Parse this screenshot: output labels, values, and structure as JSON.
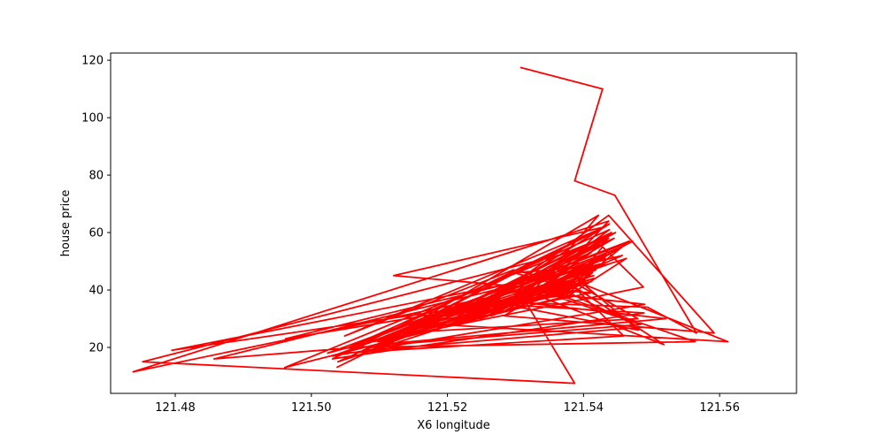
{
  "chart_data": {
    "type": "line",
    "title": "",
    "xlabel": "X6 longitude",
    "ylabel": "house price",
    "xlim": [
      121.4705,
      121.5713
    ],
    "ylim": [
      4.0,
      122.5
    ],
    "xticks": [
      121.48,
      121.5,
      121.52,
      121.54,
      121.56
    ],
    "xtick_labels": [
      "121.48",
      "121.50",
      "121.52",
      "121.54",
      "121.56"
    ],
    "yticks": [
      20,
      40,
      60,
      80,
      100,
      120
    ],
    "ytick_labels": [
      "20",
      "40",
      "60",
      "80",
      "100",
      "120"
    ],
    "grid": false,
    "series": [
      {
        "name": "house price",
        "color": "#ff0000",
        "x": [
          121.5307,
          121.5428,
          121.5387,
          121.5446,
          121.5566,
          121.5494,
          121.5254,
          121.5381,
          121.5091,
          121.5488,
          121.5428,
          121.5382,
          121.5297,
          121.5049,
          121.5432,
          121.5121,
          121.5411,
          121.5286,
          121.5472,
          121.5024,
          121.54,
          121.5612,
          121.5187,
          121.5437,
          121.4795,
          121.5316,
          121.5422,
          121.5098,
          121.5521,
          121.5298,
          121.5378,
          121.5457,
          121.4962,
          121.5394,
          121.5145,
          121.5423,
          121.5031,
          121.5489,
          121.5276,
          121.5342,
          121.5564,
          121.5065,
          121.5435,
          121.5381,
          121.5198,
          121.5463,
          121.5378,
          121.4961,
          121.5447,
          121.5212,
          121.538,
          121.5297,
          121.5413,
          121.5086,
          121.5483,
          121.5379,
          121.5265,
          121.5445,
          121.5039,
          121.5415,
          121.5312,
          121.5387,
          121.4752,
          121.5427,
          121.5228,
          121.5438,
          121.5134,
          121.5402,
          121.5299,
          121.5411,
          121.5047,
          121.5459,
          121.5382,
          121.5176,
          121.5435,
          121.5273,
          121.5415,
          121.4738,
          121.5437,
          121.5333,
          121.5518,
          121.5387,
          121.5098,
          121.5456,
          121.5283,
          121.5592,
          121.5437,
          121.5214,
          121.5432,
          121.5031,
          121.549,
          121.5341,
          121.5418,
          121.5129,
          121.548,
          121.5383,
          121.5296,
          121.5438,
          121.5055,
          121.5467,
          121.5379,
          121.5248,
          121.5424,
          121.4857,
          121.5484,
          121.5369,
          121.5413,
          121.5161,
          121.5437,
          121.5305,
          121.5481,
          121.539,
          121.5076,
          121.543,
          121.5264,
          121.5412,
          121.5379,
          121.5186,
          121.5441,
          121.5037
        ],
        "y": [
          117.5,
          110.0,
          78.0,
          73.0,
          25.0,
          34.0,
          36.0,
          38.0,
          22.0,
          41.0,
          55.0,
          42.0,
          47.0,
          24.0,
          62.0,
          45.0,
          39.0,
          33.0,
          57.0,
          18.0,
          42.0,
          22.0,
          28.0,
          49.0,
          19.0,
          37.0,
          66.0,
          21.0,
          30.0,
          36.0,
          44.0,
          52.0,
          23.0,
          40.0,
          27.0,
          61.0,
          16.0,
          32.0,
          35.0,
          40.0,
          22.0,
          20.0,
          53.0,
          43.0,
          31.0,
          51.0,
          38.0,
          13.0,
          60.0,
          29.0,
          41.0,
          46.0,
          48.0,
          19.0,
          27.0,
          39.0,
          33.0,
          58.0,
          15.0,
          44.0,
          37.0,
          7.5,
          15.0,
          56.0,
          32.0,
          63.0,
          26.0,
          48.0,
          35.0,
          53.0,
          18.0,
          24.0,
          42.0,
          29.0,
          59.0,
          34.0,
          45.0,
          11.5,
          64.0,
          38.0,
          21.0,
          41.0,
          22.0,
          55.0,
          31.0,
          25.0,
          66.0,
          28.0,
          51.0,
          17.0,
          35.0,
          39.0,
          47.0,
          25.0,
          30.0,
          43.0,
          36.0,
          61.0,
          20.0,
          57.0,
          40.0,
          30.0,
          49.0,
          16.0,
          28.0,
          37.0,
          46.0,
          26.0,
          58.0,
          34.0,
          26.0,
          44.0,
          19.0,
          52.0,
          31.0,
          43.0,
          41.0,
          27.0,
          60.0,
          13.0
        ]
      }
    ]
  }
}
